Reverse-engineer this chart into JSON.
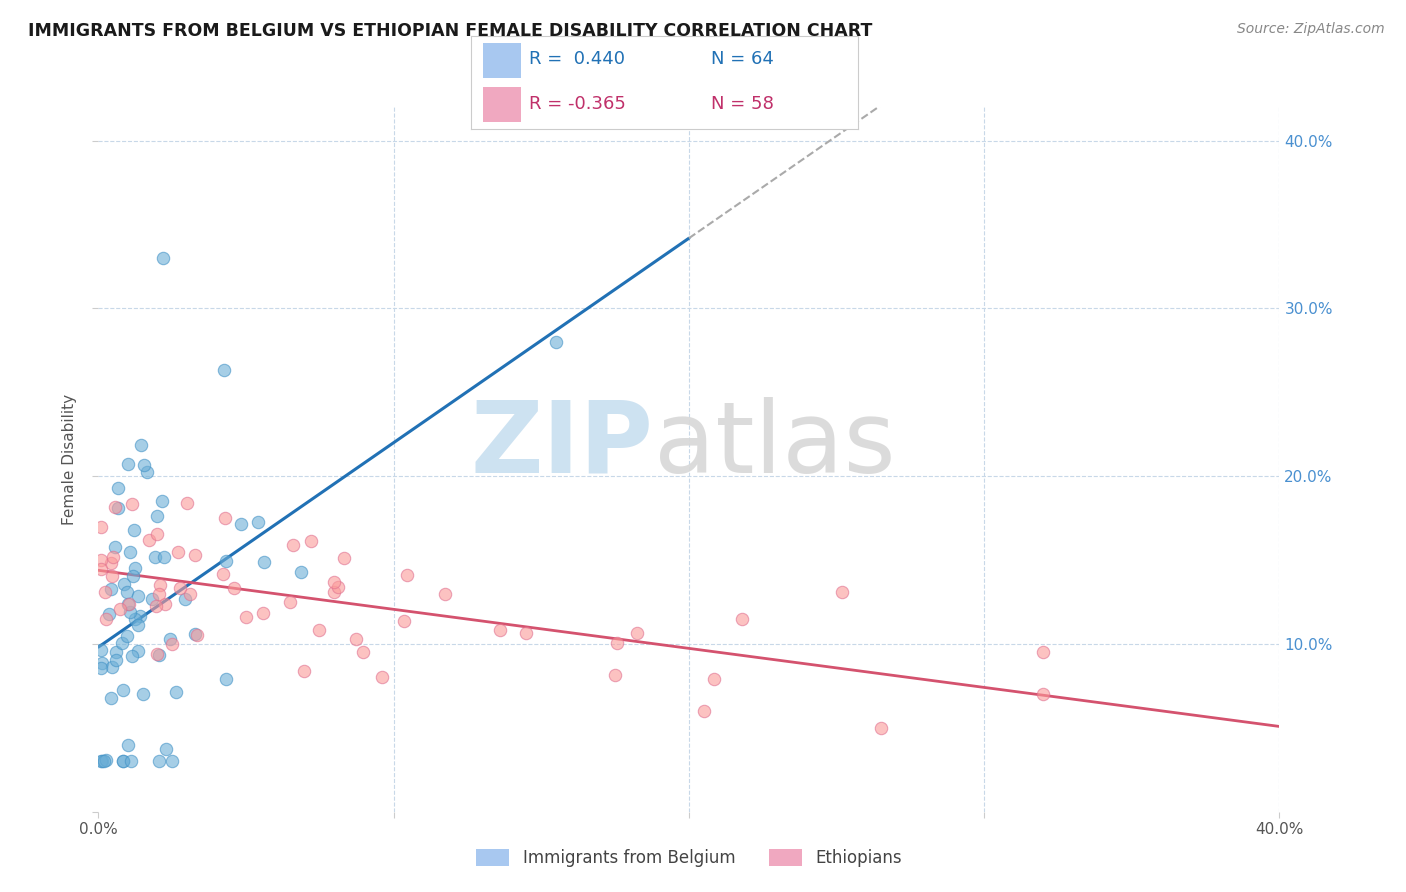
{
  "title": "IMMIGRANTS FROM BELGIUM VS ETHIOPIAN FEMALE DISABILITY CORRELATION CHART",
  "source": "Source: ZipAtlas.com",
  "ylabel": "Female Disability",
  "xlim": [
    0.0,
    0.4
  ],
  "ylim": [
    0.0,
    0.42
  ],
  "xtick_vals": [
    0.0,
    0.1,
    0.2,
    0.3,
    0.4
  ],
  "xticklabels": [
    "0.0%",
    "",
    "",
    "",
    "40.0%"
  ],
  "ytick_vals": [
    0.0,
    0.1,
    0.2,
    0.3,
    0.4
  ],
  "yticklabels_right": [
    "",
    "10.0%",
    "20.0%",
    "30.0%",
    "40.0%"
  ],
  "belgium_color": "#6baed6",
  "belgium_edge": "#4292c6",
  "ethiopia_color": "#fb9a99",
  "ethiopia_edge": "#e31a1c",
  "trend_blue_color": "#2171b5",
  "trend_pink_color": "#d4526e",
  "trend_gray_color": "#aaaaaa",
  "grid_color": "#c8d8e8",
  "background_color": "#ffffff",
  "title_color": "#1a1a1a",
  "title_fontsize": 12.5,
  "right_tick_color": "#4a90d0",
  "legend_R_belgium": "R =  0.440",
  "legend_N_belgium": "N = 64",
  "legend_R_ethiopia": "R = -0.365",
  "legend_N_ethiopia": "N = 58",
  "legend_color_blue": "#a8c8f0",
  "legend_color_pink": "#f0a8c0",
  "legend_text_color_blue": "#2171b5",
  "legend_text_color_pink": "#c0306a",
  "watermark_zip_color": "#c8dff0",
  "watermark_atlas_color": "#d8d8d8"
}
